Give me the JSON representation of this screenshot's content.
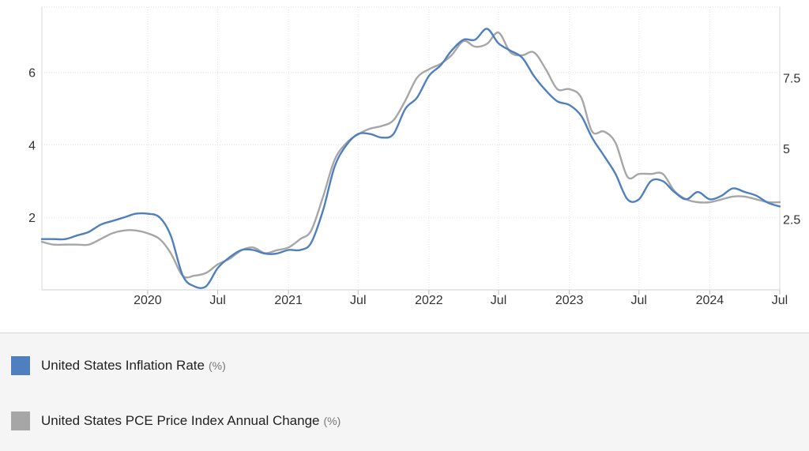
{
  "chart_data": {
    "type": "line",
    "title": "",
    "x_axis": {
      "ticks": [
        {
          "date": "2020-01-01",
          "label": "2020"
        },
        {
          "date": "2020-07-01",
          "label": "Jul"
        },
        {
          "date": "2021-01-01",
          "label": "2021"
        },
        {
          "date": "2021-07-01",
          "label": "Jul"
        },
        {
          "date": "2022-01-01",
          "label": "2022"
        },
        {
          "date": "2022-07-01",
          "label": "Jul"
        },
        {
          "date": "2023-01-01",
          "label": "2023"
        },
        {
          "date": "2023-07-01",
          "label": "Jul"
        },
        {
          "date": "2024-01-01",
          "label": "2024"
        },
        {
          "date": "2024-07-01",
          "label": "Jul"
        }
      ],
      "range": [
        "2019-04-01",
        "2024-07-01"
      ]
    },
    "y_axis_left": {
      "ticks": [
        "2",
        "4",
        "6"
      ],
      "range": [
        0,
        7.8
      ]
    },
    "y_axis_right": {
      "ticks": [
        "2.5",
        "5",
        "7.5"
      ],
      "range": [
        0,
        10
      ]
    },
    "grid": true,
    "legend_placement": "bottom",
    "series": [
      {
        "name": "United States Inflation Rate",
        "unit": "(%)",
        "color": "#4f7fbf",
        "axis": "left",
        "points": [
          [
            "2019-04-01",
            1.4
          ],
          [
            "2019-05-01",
            1.4
          ],
          [
            "2019-06-01",
            1.4
          ],
          [
            "2019-07-01",
            1.5
          ],
          [
            "2019-08-01",
            1.6
          ],
          [
            "2019-09-01",
            1.8
          ],
          [
            "2019-10-01",
            1.9
          ],
          [
            "2019-11-01",
            2.0
          ],
          [
            "2019-12-01",
            2.1
          ],
          [
            "2020-01-01",
            2.1
          ],
          [
            "2020-02-01",
            2.0
          ],
          [
            "2020-03-01",
            1.5
          ],
          [
            "2020-04-01",
            0.4
          ],
          [
            "2020-05-01",
            0.1
          ],
          [
            "2020-06-01",
            0.1
          ],
          [
            "2020-07-01",
            0.6
          ],
          [
            "2020-08-01",
            0.9
          ],
          [
            "2020-09-01",
            1.1
          ],
          [
            "2020-10-01",
            1.1
          ],
          [
            "2020-11-01",
            1.0
          ],
          [
            "2020-12-01",
            1.0
          ],
          [
            "2021-01-01",
            1.1
          ],
          [
            "2021-02-01",
            1.1
          ],
          [
            "2021-03-01",
            1.3
          ],
          [
            "2021-04-01",
            2.2
          ],
          [
            "2021-05-01",
            3.4
          ],
          [
            "2021-06-01",
            4.0
          ],
          [
            "2021-07-01",
            4.3
          ],
          [
            "2021-08-01",
            4.3
          ],
          [
            "2021-09-01",
            4.2
          ],
          [
            "2021-10-01",
            4.3
          ],
          [
            "2021-11-01",
            5.0
          ],
          [
            "2021-12-01",
            5.3
          ],
          [
            "2022-01-01",
            5.9
          ],
          [
            "2022-02-01",
            6.2
          ],
          [
            "2022-03-01",
            6.6
          ],
          [
            "2022-04-01",
            6.9
          ],
          [
            "2022-05-01",
            6.9
          ],
          [
            "2022-06-01",
            7.2
          ],
          [
            "2022-07-01",
            6.8
          ],
          [
            "2022-08-01",
            6.6
          ],
          [
            "2022-09-01",
            6.4
          ],
          [
            "2022-10-01",
            5.9
          ],
          [
            "2022-11-01",
            5.5
          ],
          [
            "2022-12-01",
            5.2
          ],
          [
            "2023-01-01",
            5.1
          ],
          [
            "2023-02-01",
            4.8
          ],
          [
            "2023-03-01",
            4.2
          ],
          [
            "2023-04-01",
            3.7
          ],
          [
            "2023-05-01",
            3.2
          ],
          [
            "2023-06-01",
            2.5
          ],
          [
            "2023-07-01",
            2.5
          ],
          [
            "2023-08-01",
            3.0
          ],
          [
            "2023-09-01",
            3.0
          ],
          [
            "2023-10-01",
            2.7
          ],
          [
            "2023-11-01",
            2.5
          ],
          [
            "2023-12-01",
            2.7
          ],
          [
            "2024-01-01",
            2.5
          ],
          [
            "2024-02-01",
            2.6
          ],
          [
            "2024-03-01",
            2.8
          ],
          [
            "2024-04-01",
            2.7
          ],
          [
            "2024-05-01",
            2.6
          ],
          [
            "2024-06-01",
            2.4
          ],
          [
            "2024-07-01",
            2.3
          ]
        ]
      },
      {
        "name": "United States PCE Price Index Annual Change",
        "unit": "(%)",
        "color": "#a6a6a6",
        "axis": "right",
        "points": [
          [
            "2019-04-01",
            1.7
          ],
          [
            "2019-05-01",
            1.6
          ],
          [
            "2019-06-01",
            1.6
          ],
          [
            "2019-07-01",
            1.6
          ],
          [
            "2019-08-01",
            1.6
          ],
          [
            "2019-09-01",
            1.8
          ],
          [
            "2019-10-01",
            2.0
          ],
          [
            "2019-11-01",
            2.1
          ],
          [
            "2019-12-01",
            2.1
          ],
          [
            "2020-01-01",
            2.0
          ],
          [
            "2020-02-01",
            1.8
          ],
          [
            "2020-03-01",
            1.3
          ],
          [
            "2020-04-01",
            0.5
          ],
          [
            "2020-05-01",
            0.5
          ],
          [
            "2020-06-01",
            0.6
          ],
          [
            "2020-07-01",
            0.9
          ],
          [
            "2020-08-01",
            1.1
          ],
          [
            "2020-09-01",
            1.4
          ],
          [
            "2020-10-01",
            1.5
          ],
          [
            "2020-11-01",
            1.3
          ],
          [
            "2020-12-01",
            1.4
          ],
          [
            "2021-01-01",
            1.5
          ],
          [
            "2021-02-01",
            1.8
          ],
          [
            "2021-03-01",
            2.1
          ],
          [
            "2021-04-01",
            3.3
          ],
          [
            "2021-05-01",
            4.6
          ],
          [
            "2021-06-01",
            5.2
          ],
          [
            "2021-07-01",
            5.5
          ],
          [
            "2021-08-01",
            5.7
          ],
          [
            "2021-09-01",
            5.8
          ],
          [
            "2021-10-01",
            6.0
          ],
          [
            "2021-11-01",
            6.7
          ],
          [
            "2021-12-01",
            7.5
          ],
          [
            "2022-01-01",
            7.8
          ],
          [
            "2022-02-01",
            8.0
          ],
          [
            "2022-03-01",
            8.3
          ],
          [
            "2022-04-01",
            8.8
          ],
          [
            "2022-05-01",
            8.6
          ],
          [
            "2022-06-01",
            8.7
          ],
          [
            "2022-07-01",
            9.1
          ],
          [
            "2022-08-01",
            8.4
          ],
          [
            "2022-09-01",
            8.3
          ],
          [
            "2022-10-01",
            8.4
          ],
          [
            "2022-11-01",
            7.8
          ],
          [
            "2022-12-01",
            7.1
          ],
          [
            "2023-01-01",
            7.1
          ],
          [
            "2023-02-01",
            6.8
          ],
          [
            "2023-03-01",
            5.6
          ],
          [
            "2023-04-01",
            5.6
          ],
          [
            "2023-05-01",
            5.2
          ],
          [
            "2023-06-01",
            4.0
          ],
          [
            "2023-07-01",
            4.1
          ],
          [
            "2023-08-01",
            4.1
          ],
          [
            "2023-09-01",
            4.1
          ],
          [
            "2023-10-01",
            3.5
          ],
          [
            "2023-11-01",
            3.2
          ],
          [
            "2023-12-01",
            3.1
          ],
          [
            "2024-01-01",
            3.1
          ],
          [
            "2024-02-01",
            3.2
          ],
          [
            "2024-03-01",
            3.3
          ],
          [
            "2024-04-01",
            3.3
          ],
          [
            "2024-05-01",
            3.2
          ],
          [
            "2024-06-01",
            3.1
          ],
          [
            "2024-07-01",
            3.1
          ]
        ]
      }
    ]
  }
}
